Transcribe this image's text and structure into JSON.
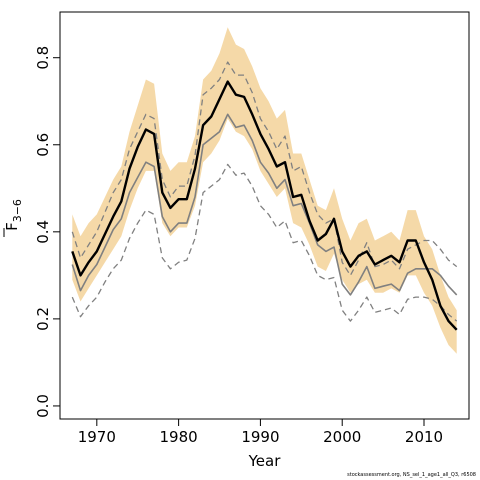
{
  "chart_data": {
    "type": "line",
    "xlabel": "Year",
    "ylabel_main": "F",
    "ylabel_sub": "3−6",
    "xlim": [
      1965.5,
      2015.5
    ],
    "ylim": [
      -0.03,
      0.905
    ],
    "xticks": [
      1970,
      1980,
      1990,
      2000,
      2010
    ],
    "yticks": [
      0.0,
      0.2,
      0.4,
      0.6,
      0.8
    ],
    "ytick_labels": [
      "0.0",
      "0.2",
      "0.4",
      "0.6",
      "0.8"
    ],
    "colors": {
      "band": "#f5d9a8",
      "estimate": "#000000",
      "comparison": "#808080",
      "dashed": "#808080"
    },
    "x": [
      1967,
      1968,
      1969,
      1970,
      1971,
      1972,
      1973,
      1974,
      1975,
      1976,
      1977,
      1978,
      1979,
      1980,
      1981,
      1982,
      1983,
      1984,
      1985,
      1986,
      1987,
      1988,
      1989,
      1990,
      1991,
      1992,
      1993,
      1994,
      1995,
      1996,
      1997,
      1998,
      1999,
      2000,
      2001,
      2002,
      2003,
      2004,
      2005,
      2006,
      2007,
      2008,
      2009,
      2010,
      2011,
      2012,
      2013,
      2014
    ],
    "series": [
      {
        "role": "ci_upper",
        "values": [
          0.44,
          0.39,
          0.42,
          0.44,
          0.48,
          0.52,
          0.55,
          0.63,
          0.69,
          0.75,
          0.74,
          0.58,
          0.54,
          0.56,
          0.56,
          0.62,
          0.75,
          0.77,
          0.81,
          0.87,
          0.83,
          0.82,
          0.78,
          0.73,
          0.7,
          0.66,
          0.68,
          0.58,
          0.58,
          0.52,
          0.46,
          0.45,
          0.5,
          0.43,
          0.38,
          0.42,
          0.43,
          0.38,
          0.39,
          0.4,
          0.38,
          0.45,
          0.45,
          0.39,
          0.36,
          0.3,
          0.25,
          0.22
        ]
      },
      {
        "role": "ci_lower",
        "values": [
          0.29,
          0.24,
          0.27,
          0.3,
          0.33,
          0.36,
          0.39,
          0.45,
          0.5,
          0.54,
          0.54,
          0.42,
          0.39,
          0.41,
          0.41,
          0.46,
          0.56,
          0.58,
          0.61,
          0.66,
          0.63,
          0.62,
          0.59,
          0.54,
          0.51,
          0.48,
          0.5,
          0.42,
          0.41,
          0.37,
          0.32,
          0.31,
          0.35,
          0.29,
          0.26,
          0.28,
          0.29,
          0.26,
          0.26,
          0.27,
          0.26,
          0.3,
          0.3,
          0.26,
          0.23,
          0.18,
          0.14,
          0.12
        ]
      },
      {
        "role": "estimate",
        "values": [
          0.355,
          0.3,
          0.33,
          0.355,
          0.395,
          0.435,
          0.47,
          0.545,
          0.595,
          0.635,
          0.625,
          0.49,
          0.455,
          0.475,
          0.475,
          0.545,
          0.645,
          0.665,
          0.705,
          0.745,
          0.715,
          0.71,
          0.67,
          0.625,
          0.59,
          0.55,
          0.56,
          0.48,
          0.485,
          0.425,
          0.38,
          0.395,
          0.43,
          0.355,
          0.32,
          0.345,
          0.355,
          0.325,
          0.335,
          0.345,
          0.33,
          0.38,
          0.38,
          0.33,
          0.29,
          0.23,
          0.195,
          0.175
        ]
      },
      {
        "role": "comparison",
        "values": [
          0.325,
          0.265,
          0.3,
          0.325,
          0.365,
          0.405,
          0.43,
          0.49,
          0.525,
          0.56,
          0.55,
          0.435,
          0.4,
          0.42,
          0.42,
          0.48,
          0.6,
          0.615,
          0.63,
          0.67,
          0.64,
          0.645,
          0.61,
          0.56,
          0.535,
          0.5,
          0.52,
          0.46,
          0.465,
          0.42,
          0.37,
          0.355,
          0.365,
          0.28,
          0.255,
          0.285,
          0.32,
          0.27,
          0.275,
          0.28,
          0.265,
          0.305,
          0.315,
          0.315,
          0.315,
          0.3,
          0.275,
          0.255
        ]
      },
      {
        "role": "comparison_upper",
        "values": [
          0.4,
          0.34,
          0.37,
          0.4,
          0.445,
          0.49,
          0.52,
          0.59,
          0.63,
          0.67,
          0.66,
          0.52,
          0.48,
          0.505,
          0.505,
          0.575,
          0.715,
          0.73,
          0.75,
          0.79,
          0.76,
          0.76,
          0.72,
          0.66,
          0.63,
          0.59,
          0.62,
          0.54,
          0.55,
          0.49,
          0.44,
          0.42,
          0.43,
          0.33,
          0.3,
          0.335,
          0.375,
          0.32,
          0.325,
          0.335,
          0.315,
          0.36,
          0.37,
          0.38,
          0.38,
          0.36,
          0.335,
          0.32
        ]
      },
      {
        "role": "comparison_lower",
        "values": [
          0.25,
          0.205,
          0.23,
          0.25,
          0.285,
          0.315,
          0.335,
          0.385,
          0.42,
          0.45,
          0.44,
          0.34,
          0.315,
          0.33,
          0.335,
          0.385,
          0.49,
          0.505,
          0.52,
          0.555,
          0.53,
          0.535,
          0.505,
          0.46,
          0.44,
          0.41,
          0.425,
          0.375,
          0.38,
          0.345,
          0.3,
          0.29,
          0.295,
          0.22,
          0.195,
          0.22,
          0.25,
          0.215,
          0.22,
          0.225,
          0.21,
          0.245,
          0.25,
          0.25,
          0.245,
          0.23,
          0.21,
          0.195
        ]
      }
    ]
  },
  "footer_text": "stockassessment.org, NS_sel_1_age1_all_Q3, r6508"
}
